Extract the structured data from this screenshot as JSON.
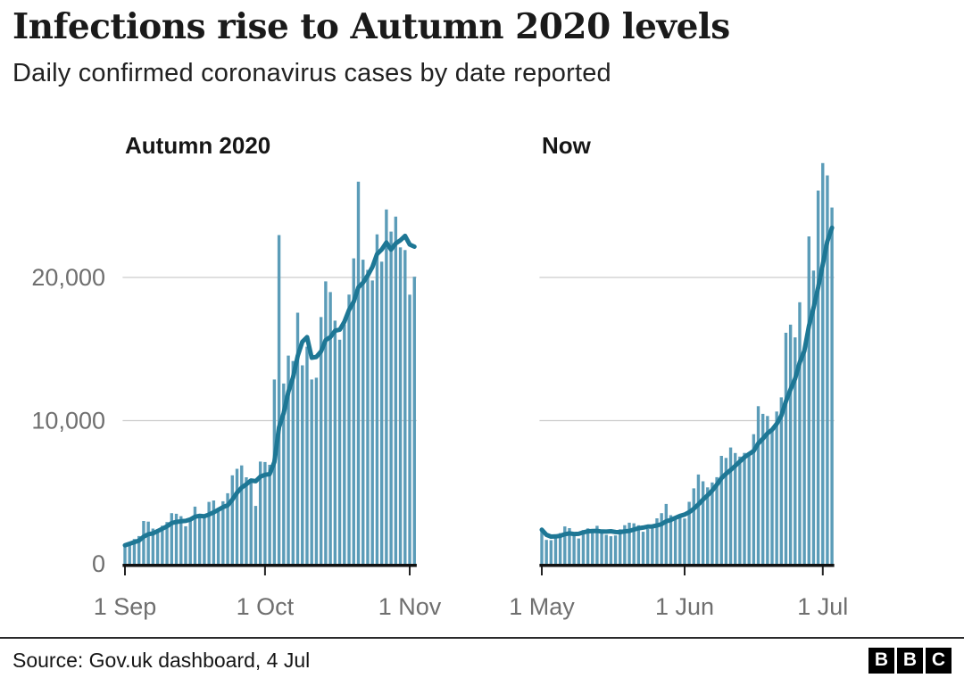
{
  "header": {
    "title": "Infections rise to Autumn 2020 levels",
    "subtitle": "Daily confirmed coronavirus cases by date reported"
  },
  "footer": {
    "source": "Source: Gov.uk dashboard, 4 Jul",
    "logo_letters": [
      "B",
      "B",
      "C"
    ]
  },
  "colors": {
    "bar": "#5b9cb8",
    "line": "#1e7795",
    "grid": "#cccccc",
    "axis": "#111111",
    "tick": "#222222",
    "tick_label": "#6f6f6f",
    "text": "#161616"
  },
  "chart_data": [
    {
      "type": "bar",
      "title": "Autumn 2020",
      "x_start_date": "1 Sep",
      "x_end_date": "2 Nov",
      "x_tick_labels": [
        "1 Sep",
        "1 Oct",
        "1 Nov"
      ],
      "x_tick_indices": [
        0,
        30,
        61
      ],
      "yticks": [
        0,
        10000,
        20000
      ],
      "ytick_labels": [
        "0",
        "10,000",
        "20,000"
      ],
      "show_ytick_labels": true,
      "ylim": [
        0,
        28500
      ],
      "grid": "horizontal",
      "series": [
        {
          "name": "daily-cases-bars",
          "values": [
            1295,
            1508,
            1735,
            1940,
            2988,
            2948,
            2460,
            2420,
            2659,
            2919,
            3539,
            3497,
            3330,
            2621,
            3105,
            3991,
            3395,
            3295,
            4322,
            4422,
            3899,
            4368,
            4926,
            6178,
            6634,
            6874,
            6042,
            5693,
            4044,
            7143,
            7108,
            6914,
            12872,
            22961,
            12594,
            14542,
            14162,
            17540,
            13864,
            15166,
            12872,
            13000,
            17234,
            19724,
            18980,
            16982,
            15650,
            16717,
            18804,
            21331,
            26688,
            21242,
            20530,
            19790,
            23012,
            21100,
            24750,
            23200,
            24250,
            22100,
            21915,
            18800,
            20050
          ]
        },
        {
          "name": "seven-day-average-line",
          "derived": "rolling_mean_7"
        }
      ]
    },
    {
      "type": "bar",
      "title": "Now",
      "x_start_date": "1 May",
      "x_end_date": "3 Jul",
      "x_tick_labels": [
        "1 May",
        "1 Jun",
        "1 Jul"
      ],
      "x_tick_indices": [
        0,
        31,
        61
      ],
      "yticks": [
        0,
        10000,
        20000
      ],
      "ytick_labels": [
        "0",
        "10,000",
        "20,000"
      ],
      "show_ytick_labels": false,
      "ylim": [
        0,
        28500
      ],
      "grid": "horizontal",
      "series": [
        {
          "name": "daily-cases-bars",
          "values": [
            2381,
            1671,
            1649,
            1946,
            2144,
            2613,
            2490,
            2047,
            1770,
            2357,
            2474,
            2284,
            2657,
            2193,
            2027,
            1926,
            1979,
            2412,
            2696,
            2874,
            2829,
            2694,
            2235,
            2439,
            2493,
            3180,
            3542,
            4182,
            3398,
            3240,
            3383,
            3165,
            4330,
            5274,
            6238,
            5765,
            5341,
            5683,
            6048,
            7540,
            7393,
            8125,
            7738,
            7490,
            7742,
            7673,
            9055,
            11007,
            10476,
            10321,
            9284,
            10633,
            11625,
            16135,
            16703,
            15810,
            18270,
            14876,
            22868,
            20479,
            26068,
            27989,
            27125,
            24885
          ]
        },
        {
          "name": "seven-day-average-line",
          "derived": "rolling_mean_7"
        }
      ]
    }
  ]
}
